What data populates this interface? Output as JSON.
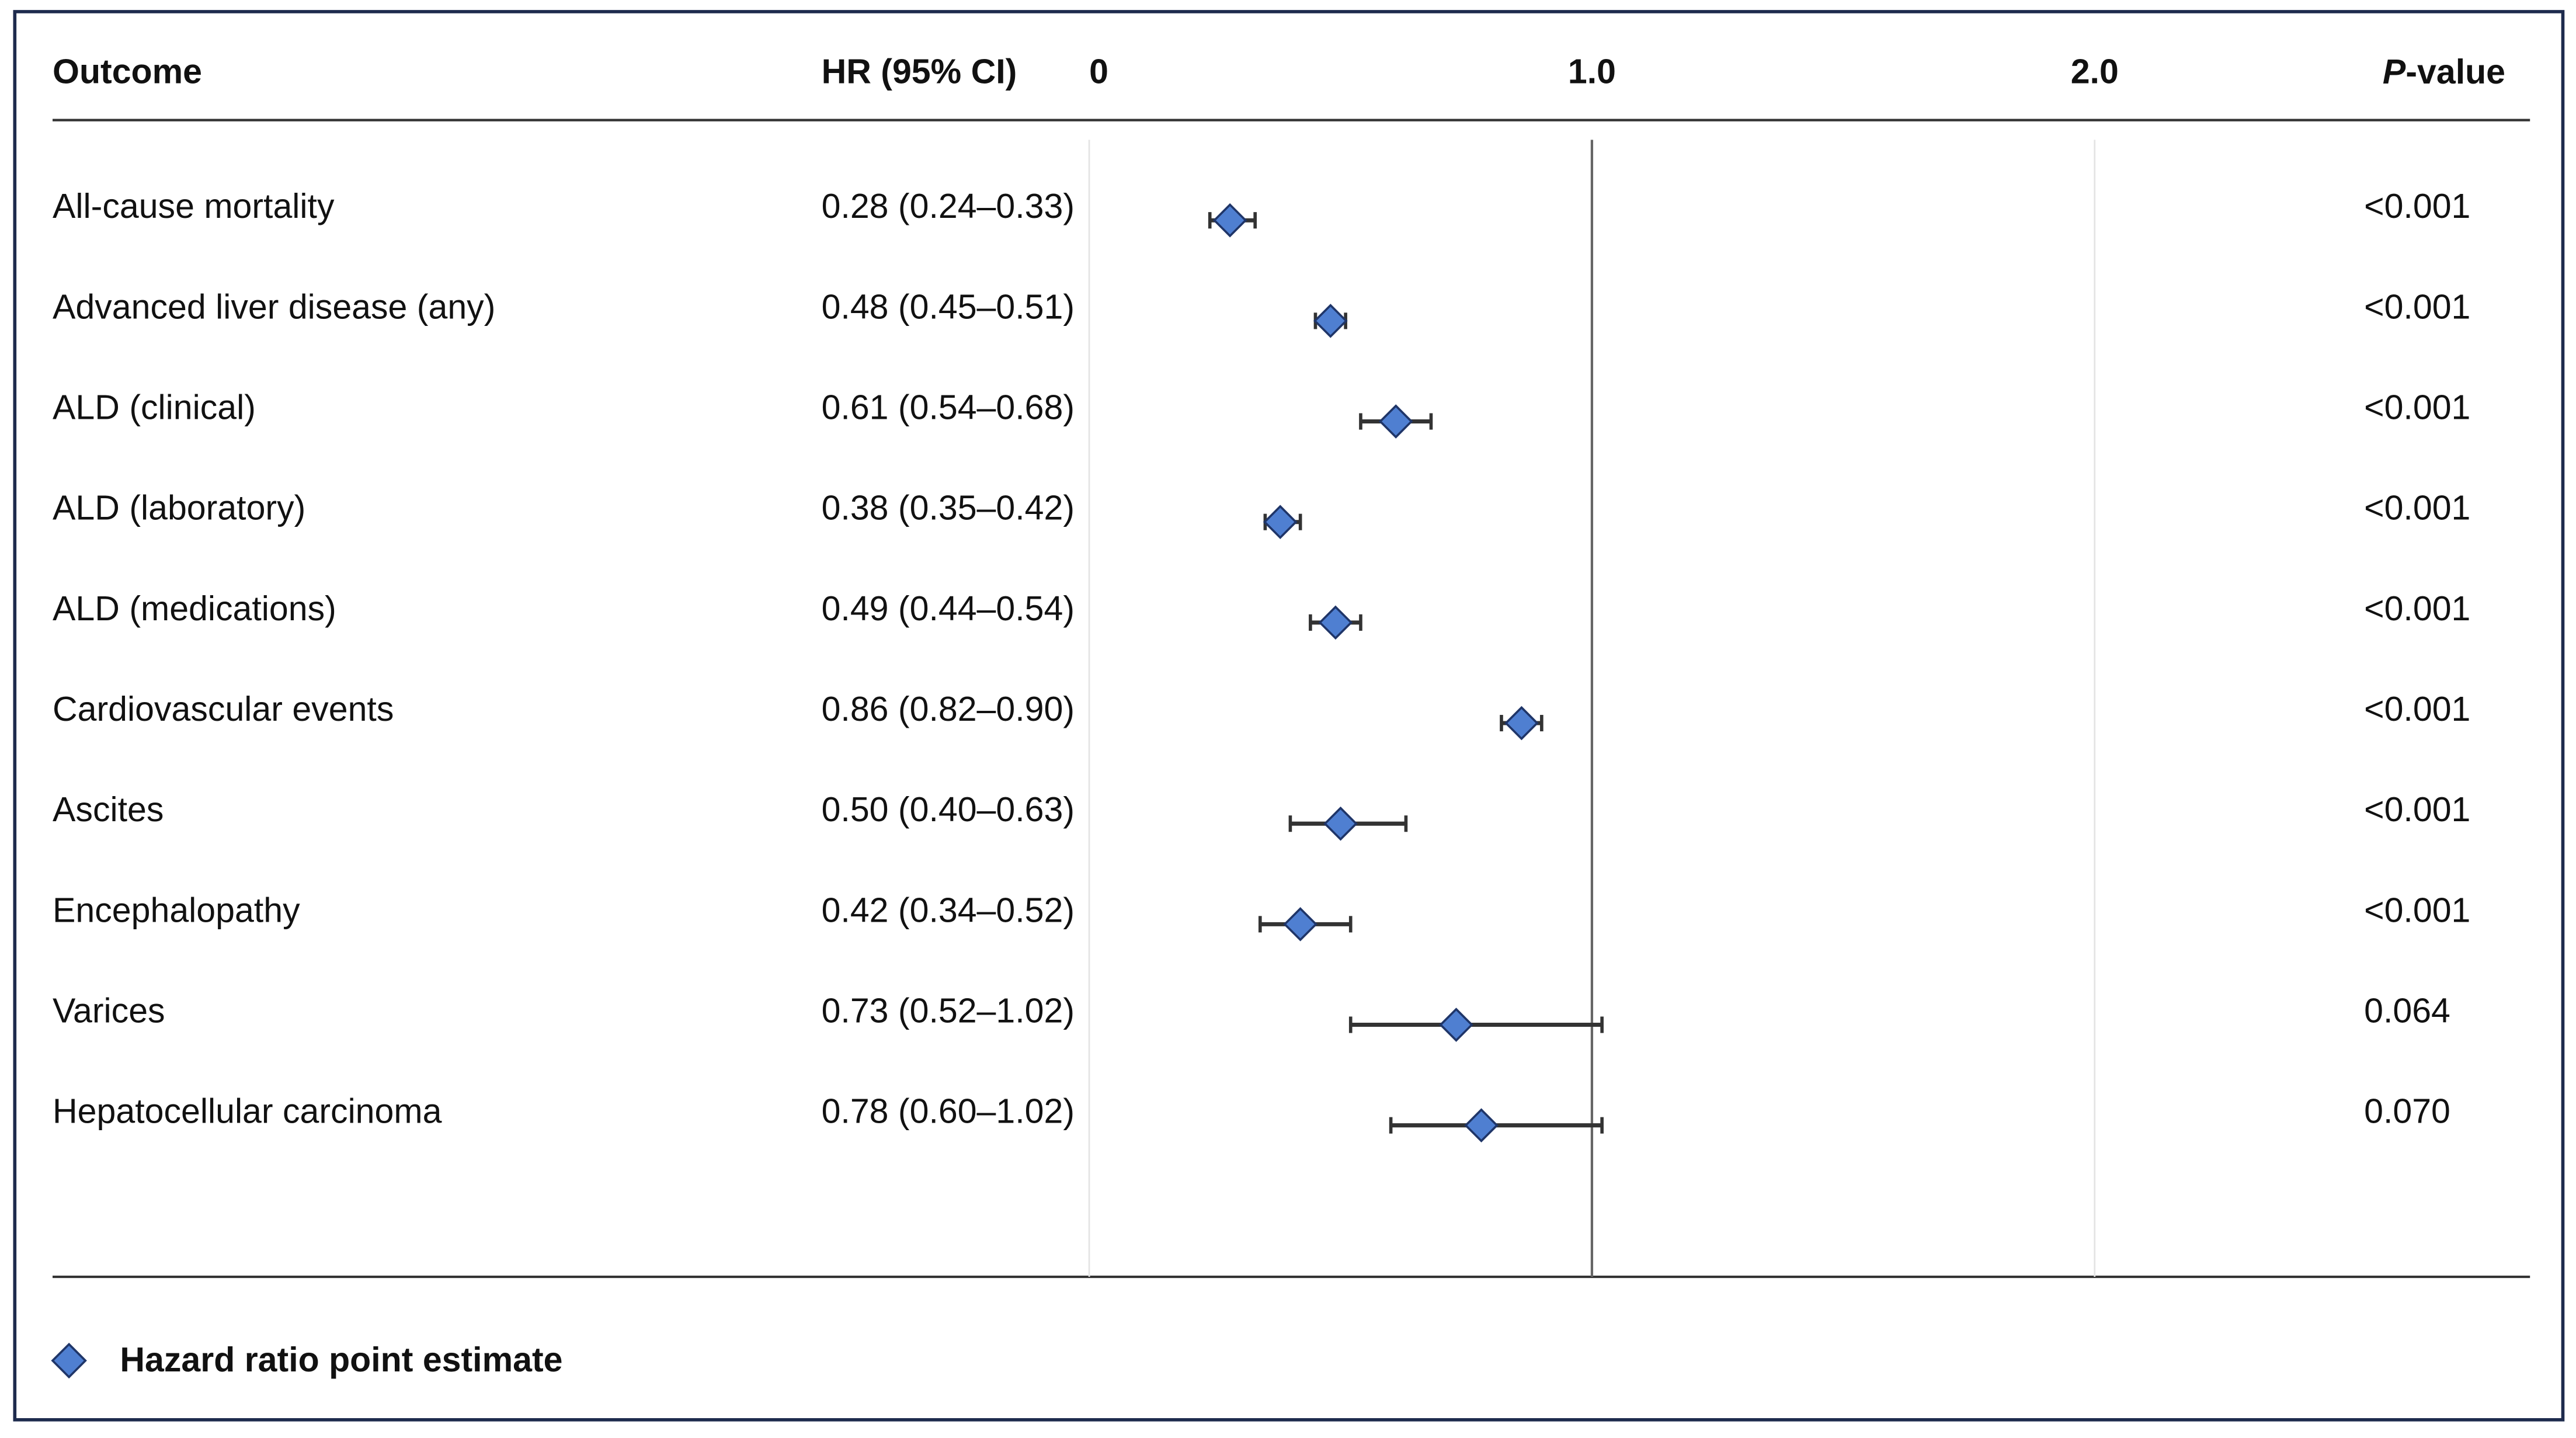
{
  "chart_data": {
    "type": "forest",
    "column_headers": {
      "outcome": "Outcome",
      "hr": "HR (95% CI)",
      "p_value": "P-value"
    },
    "categories": [
      "All-cause mortality",
      "Advanced liver disease (any)",
      "ALD (clinical)",
      "ALD (laboratory)",
      "ALD (medications)",
      "Cardiovascular events",
      "Ascites",
      "Encephalopathy",
      "Varices",
      "Hepatocellular carcinoma"
    ],
    "values": [
      0.28,
      0.48,
      0.61,
      0.38,
      0.49,
      0.86,
      0.5,
      0.42,
      0.73,
      0.78
    ],
    "ci_low": [
      0.24,
      0.45,
      0.54,
      0.35,
      0.44,
      0.82,
      0.4,
      0.34,
      0.52,
      0.6
    ],
    "ci_high": [
      0.33,
      0.51,
      0.68,
      0.42,
      0.54,
      0.9,
      0.63,
      0.52,
      1.02,
      1.02
    ],
    "value_labels": [
      "0.28 (0.24–0.33)",
      "0.48 (0.45–0.51)",
      "0.61 (0.54–0.68)",
      "0.38 (0.35–0.42)",
      "0.49 (0.44–0.54)",
      "0.86 (0.82–0.90)",
      "0.50 (0.40–0.63)",
      "0.42 (0.34–0.52)",
      "0.73 (0.52–1.02)",
      "0.78 (0.60–1.02)"
    ],
    "p_values": [
      "<0.001",
      "<0.001",
      "<0.001",
      "<0.001",
      "<0.001",
      "<0.001",
      "<0.001",
      "<0.001",
      "0.064",
      "0.070"
    ],
    "xlim": [
      0,
      2
    ],
    "xticks": [
      0,
      {
        "value": 1,
        "label": "1.0"
      },
      {
        "value": 2,
        "label": "2.0"
      }
    ],
    "reference_line": 1,
    "color": "#4f7fd1",
    "legend": "Hazard ratio point estimate"
  }
}
